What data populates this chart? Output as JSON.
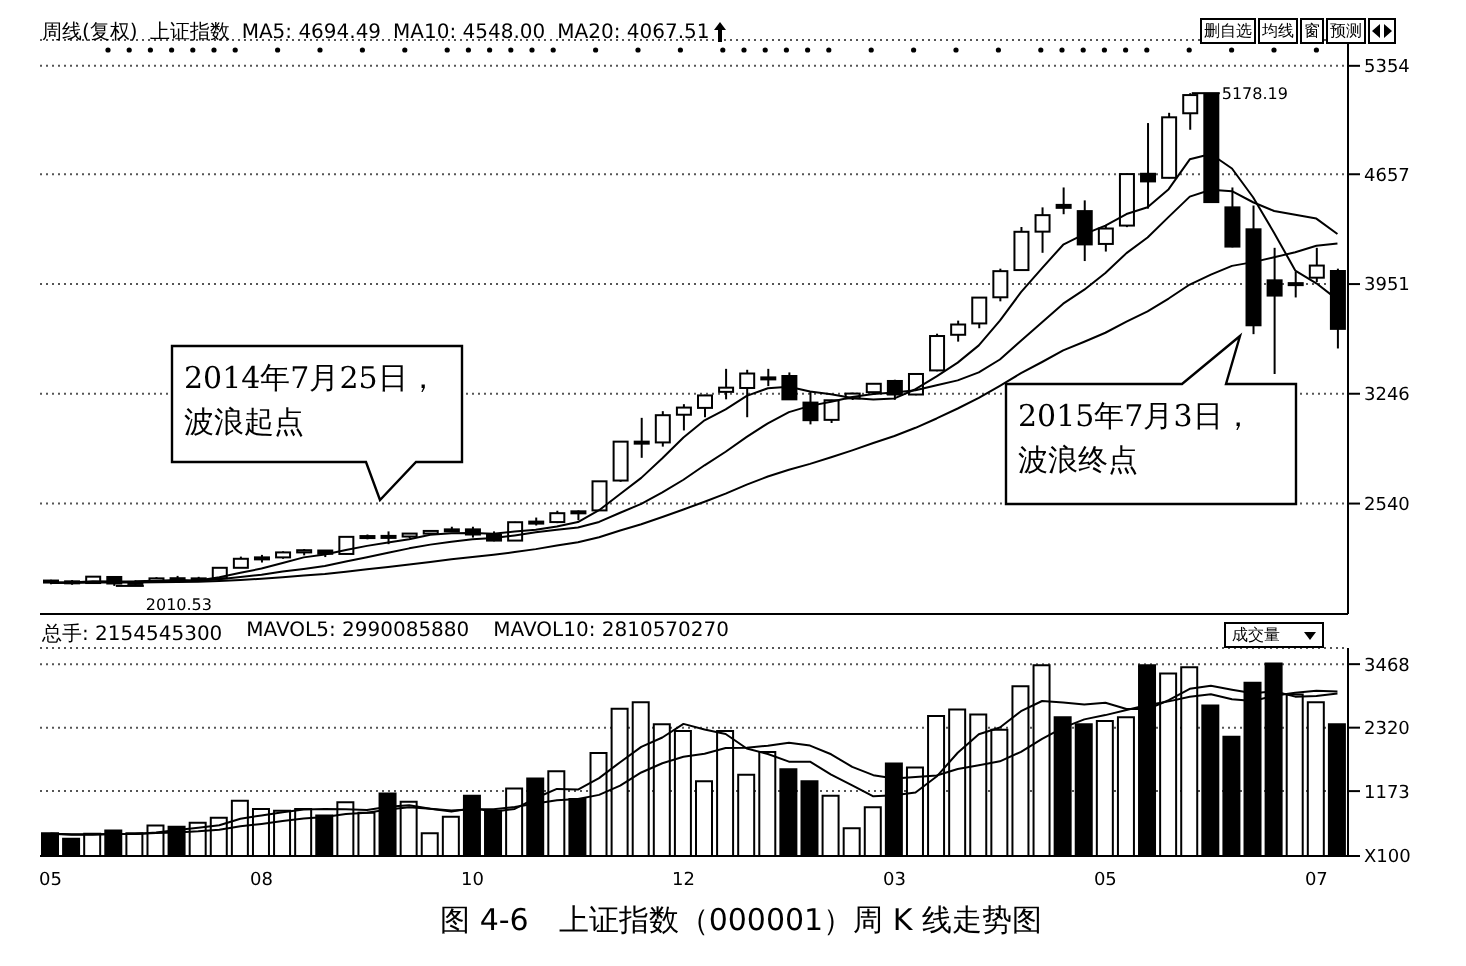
{
  "chart_data": [
    {
      "type": "candlestick",
      "title": "图 4-6　上证指数（000001）周 K 线走势图",
      "categories": [
        "05",
        null,
        null,
        null,
        null,
        null,
        null,
        null,
        null,
        null,
        "08",
        null,
        null,
        null,
        null,
        null,
        null,
        null,
        null,
        null,
        "10",
        null,
        null,
        null,
        null,
        null,
        null,
        null,
        null,
        null,
        "12",
        null,
        null,
        null,
        null,
        null,
        null,
        null,
        null,
        null,
        "03",
        null,
        null,
        null,
        null,
        null,
        null,
        null,
        null,
        null,
        "05",
        null,
        null,
        null,
        null,
        null,
        null,
        null,
        null,
        null,
        "07",
        null
      ],
      "ohlc": [
        [
          2045,
          2050,
          2021,
          2039
        ],
        [
          2040,
          2048,
          2018,
          2029
        ],
        [
          2029,
          2073,
          2028,
          2070
        ],
        [
          2068,
          2071,
          2010.53,
          2026
        ],
        [
          2024,
          2046,
          2017,
          2036
        ],
        [
          2037,
          2067,
          2035,
          2059
        ],
        [
          2060,
          2075,
          2040,
          2047
        ],
        [
          2047,
          2069,
          2043,
          2059
        ],
        [
          2060,
          2132,
          2058,
          2127
        ],
        [
          2127,
          2199,
          2126,
          2185
        ],
        [
          2184,
          2210,
          2161,
          2194
        ],
        [
          2194,
          2233,
          2185,
          2226
        ],
        [
          2226,
          2248,
          2207,
          2240
        ],
        [
          2238,
          2240,
          2196,
          2217
        ],
        [
          2216,
          2330,
          2212,
          2326
        ],
        [
          2326,
          2341,
          2310,
          2331
        ],
        [
          2332,
          2361,
          2279,
          2329
        ],
        [
          2328,
          2350,
          2317,
          2347
        ],
        [
          2347,
          2367,
          2341,
          2364
        ],
        [
          2367,
          2391,
          2359,
          2374
        ],
        [
          2374,
          2391,
          2321,
          2341
        ],
        [
          2338,
          2361,
          2297,
          2302
        ],
        [
          2302,
          2423,
          2301,
          2420
        ],
        [
          2424,
          2450,
          2399,
          2418
        ],
        [
          2421,
          2494,
          2414,
          2478
        ],
        [
          2490,
          2496,
          2433,
          2487
        ],
        [
          2496,
          2683,
          2496,
          2683
        ],
        [
          2688,
          2938,
          2680,
          2938
        ],
        [
          2930,
          3091,
          2834,
          2938
        ],
        [
          2933,
          3134,
          2906,
          3108
        ],
        [
          3111,
          3179,
          3010,
          3157
        ],
        [
          3155,
          3239,
          3095,
          3235
        ],
        [
          3258,
          3406,
          3210,
          3285
        ],
        [
          3283,
          3400,
          3095,
          3376
        ],
        [
          3340,
          3406,
          3295,
          3351
        ],
        [
          3360,
          3383,
          3210,
          3210
        ],
        [
          3189,
          3264,
          3049,
          3076
        ],
        [
          3078,
          3207,
          3058,
          3204
        ],
        [
          3216,
          3253,
          3206,
          3247
        ],
        [
          3256,
          3311,
          3241,
          3310
        ],
        [
          3328,
          3336,
          3207,
          3241
        ],
        [
          3241,
          3379,
          3236,
          3373
        ],
        [
          3396,
          3632,
          3390,
          3617
        ],
        [
          3625,
          3716,
          3581,
          3691
        ],
        [
          3698,
          3865,
          3667,
          3864
        ],
        [
          3866,
          4050,
          3840,
          4034
        ],
        [
          4041,
          4318,
          4035,
          4287
        ],
        [
          4288,
          4444,
          4152,
          4394
        ],
        [
          4460,
          4572,
          4400,
          4441
        ],
        [
          4420,
          4489,
          4099,
          4206
        ],
        [
          4209,
          4329,
          4160,
          4308
        ],
        [
          4327,
          4658,
          4317,
          4658
        ],
        [
          4660,
          4986,
          4436,
          4611
        ],
        [
          4634,
          5052,
          4631,
          5023
        ],
        [
          5049,
          5178.19,
          4943,
          5166
        ],
        [
          5174,
          5176,
          4476,
          4478
        ],
        [
          4444,
          4572,
          4187,
          4192
        ],
        [
          4303,
          4456,
          3629,
          3686
        ],
        [
          3975,
          4184,
          3373,
          3877
        ],
        [
          3950,
          4030,
          3865,
          3957
        ],
        [
          3992,
          4184,
          3964,
          4070
        ],
        [
          4035,
          4050,
          3537,
          3663
        ]
      ],
      "series": [
        {
          "type": "line",
          "color": "#000000",
          "values": [
            2032,
            2032,
            2040,
            2039,
            2040,
            2044,
            2048,
            2045,
            2066,
            2095,
            2122,
            2158,
            2194,
            2212,
            2241,
            2268,
            2289,
            2310,
            2339,
            2349,
            2351,
            2346,
            2360,
            2371,
            2392,
            2421,
            2497,
            2601,
            2705,
            2831,
            2965,
            3075,
            3145,
            3232,
            3281,
            3291,
            3260,
            3243,
            3218,
            3209,
            3216,
            3275,
            3358,
            3446,
            3557,
            3716,
            3899,
            4054,
            4204,
            4272,
            4327,
            4401,
            4445,
            4561,
            4753,
            4787,
            4694,
            4509,
            4280,
            4038,
            3956,
            3851
          ]
        },
        {
          "type": "line",
          "color": "#000000",
          "values": [
            2031,
            2031,
            2035,
            2035,
            2035,
            2038,
            2040,
            2043,
            2053,
            2068,
            2083,
            2103,
            2120,
            2139,
            2168,
            2195,
            2224,
            2252,
            2276,
            2295,
            2310,
            2318,
            2335,
            2355,
            2371,
            2386,
            2422,
            2481,
            2538,
            2612,
            2693,
            2786,
            2873,
            2969,
            3056,
            3128,
            3168,
            3194,
            3225,
            3245,
            3254,
            3268,
            3301,
            3332,
            3383,
            3466,
            3587,
            3706,
            3825,
            3915,
            4022,
            4150,
            4250,
            4383,
            4513,
            4557,
            4548,
            4477,
            4421,
            4396,
            4372,
            4273
          ]
        },
        {
          "type": "line",
          "color": "#000000",
          "values": [
            2031,
            2031,
            2033,
            2033,
            2033,
            2034,
            2035,
            2037,
            2042,
            2049,
            2057,
            2067,
            2078,
            2087,
            2102,
            2117,
            2132,
            2148,
            2165,
            2182,
            2197,
            2211,
            2228,
            2247,
            2270,
            2291,
            2323,
            2367,
            2407,
            2454,
            2502,
            2552,
            2604,
            2662,
            2714,
            2757,
            2795,
            2838,
            2882,
            2929,
            2974,
            3027,
            3087,
            3151,
            3220,
            3297,
            3378,
            3450,
            3525,
            3580,
            3638,
            3709,
            3776,
            3858,
            3948,
            4012,
            4068,
            4092,
            4123,
            4156,
            4197,
            4212
          ]
        }
      ],
      "ylim": [
        1830,
        5520
      ],
      "yticks": [
        2540,
        3246,
        3951,
        4657,
        5354
      ],
      "grid": "y",
      "tick_labels": "y",
      "annotations": [
        "周线(复权)",
        "上证指数",
        "MA5: 4694.49",
        "MA10: 4548.00",
        "MA20: 4067.51",
        "5178.19",
        "2010.53",
        "2014年7月25日，",
        "波浪起点",
        "2015年7月3日，",
        "波浪终点",
        "删自选",
        "均线",
        "窗",
        "预测"
      ]
    },
    {
      "type": "bar",
      "categories": [
        "05",
        null,
        null,
        null,
        null,
        null,
        null,
        null,
        null,
        null,
        "08",
        null,
        null,
        null,
        null,
        null,
        null,
        null,
        null,
        null,
        "10",
        null,
        null,
        null,
        null,
        null,
        null,
        null,
        null,
        null,
        "12",
        null,
        null,
        null,
        null,
        null,
        null,
        null,
        null,
        null,
        "03",
        null,
        null,
        null,
        null,
        null,
        null,
        null,
        null,
        null,
        "05",
        null,
        null,
        null,
        null,
        null,
        null,
        null,
        null,
        null,
        "07",
        null
      ],
      "values": [
        410,
        310,
        400,
        460,
        410,
        550,
        530,
        600,
        690,
        1000,
        850,
        820,
        850,
        730,
        970,
        780,
        1130,
        980,
        410,
        710,
        1090,
        820,
        1220,
        1400,
        1530,
        1030,
        1860,
        2660,
        2780,
        2380,
        2260,
        1350,
        2260,
        1470,
        1880,
        1570,
        1350,
        1090,
        500,
        880,
        1670,
        1600,
        2530,
        2650,
        2560,
        2280,
        3070,
        3450,
        2510,
        2380,
        2440,
        2510,
        3450,
        3300,
        3410,
        2720,
        2155,
        3130,
        3480,
        2920,
        2780,
        2380
      ],
      "colors": [
        "#000000",
        "#000000",
        "#ffffff",
        "#000000",
        "#ffffff",
        "#ffffff",
        "#000000",
        "#ffffff",
        "#ffffff",
        "#ffffff",
        "#ffffff",
        "#ffffff",
        "#ffffff",
        "#000000",
        "#ffffff",
        "#ffffff",
        "#000000",
        "#ffffff",
        "#ffffff",
        "#ffffff",
        "#000000",
        "#000000",
        "#ffffff",
        "#000000",
        "#ffffff",
        "#000000",
        "#ffffff",
        "#ffffff",
        "#ffffff",
        "#ffffff",
        "#ffffff",
        "#ffffff",
        "#ffffff",
        "#ffffff",
        "#ffffff",
        "#000000",
        "#000000",
        "#ffffff",
        "#ffffff",
        "#ffffff",
        "#000000",
        "#ffffff",
        "#ffffff",
        "#ffffff",
        "#ffffff",
        "#ffffff",
        "#ffffff",
        "#ffffff",
        "#000000",
        "#000000",
        "#ffffff",
        "#ffffff",
        "#000000",
        "#ffffff",
        "#ffffff",
        "#000000",
        "#000000",
        "#000000",
        "#000000",
        "#ffffff",
        "#ffffff",
        "#000000"
      ],
      "series": [
        {
          "type": "line",
          "color": "#000000",
          "values": [
            402,
            384,
            384,
            396,
            398,
            426,
            470,
            510,
            556,
            674,
            734,
            792,
            842,
            850,
            844,
            830,
            892,
            918,
            854,
            802,
            864,
            802,
            850,
            1048,
            1212,
            1200,
            1408,
            1696,
            1972,
            2142,
            2388,
            2286,
            2206,
            1944,
            1844,
            1706,
            1706,
            1472,
            1278,
            1078,
            1098,
            1148,
            1436,
            1866,
            2202,
            2324,
            2618,
            2802,
            2774,
            2738,
            2770,
            2658,
            2658,
            2816,
            3022,
            3078,
            3007,
            2943,
            2979,
            2881,
            2893,
            2938
          ]
        },
        {
          "type": "line",
          "color": "#000000",
          "values": [
            401,
            392,
            392,
            398,
            399,
            414,
            427,
            447,
            476,
            536,
            580,
            631,
            676,
            703,
            759,
            782,
            842,
            880,
            852,
            823,
            847,
            847,
            884,
            951,
            1007,
            1032,
            1105,
            1273,
            1510,
            1677,
            1794,
            1847,
            1951,
            1958,
            1993,
            2047,
            1996,
            1839,
            1611,
            1461,
            1402,
            1427,
            1454,
            1572,
            1640,
            1711,
            1883,
            2119,
            2320,
            2470,
            2547,
            2638,
            2730,
            2795,
            2880,
            2924,
            2833,
            2801,
            2898,
            2952,
            2986,
            2973
          ]
        }
      ],
      "ylim": [
        0,
        3760
      ],
      "yticks": [
        {
          "value": 0,
          "label": "X100"
        },
        1173,
        2320,
        3468
      ],
      "grid": "y",
      "annotations": [
        "总手: 2154545300",
        "MAVOL5: 2990085880",
        "MAVOL10: 2810570270",
        "成交量"
      ]
    }
  ]
}
